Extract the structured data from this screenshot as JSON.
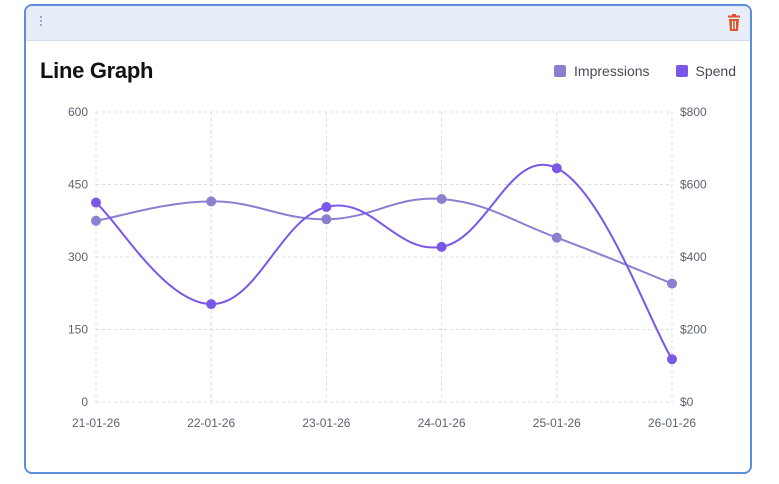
{
  "card": {
    "title": "Line Graph",
    "icons": {
      "drag": "drag-handle-icon",
      "delete": "trash-icon"
    },
    "delete_color": "#e0532f"
  },
  "chart_data": {
    "type": "line",
    "title": "Line Graph",
    "x": [
      "21-01-26",
      "22-01-26",
      "23-01-26",
      "24-01-26",
      "25-01-26",
      "26-01-26"
    ],
    "series": [
      {
        "name": "Impressions",
        "axis": "left",
        "color": "#8b7fd0",
        "values": [
          375,
          415,
          378,
          420,
          340,
          245
        ]
      },
      {
        "name": "Spend",
        "axis": "right",
        "color": "#7b57e8",
        "values": [
          550,
          270,
          538,
          428,
          645,
          118
        ]
      }
    ],
    "y_left": {
      "min": 0,
      "max": 600,
      "ticks": [
        "0",
        "150",
        "300",
        "450",
        "600"
      ]
    },
    "y_right": {
      "min": 0,
      "max": 800,
      "ticks": [
        "$0",
        "$200",
        "$400",
        "$600",
        "$800"
      ]
    },
    "grid": true,
    "grid_style": "dashed",
    "curve": "smooth",
    "legend_position": "top-right"
  }
}
